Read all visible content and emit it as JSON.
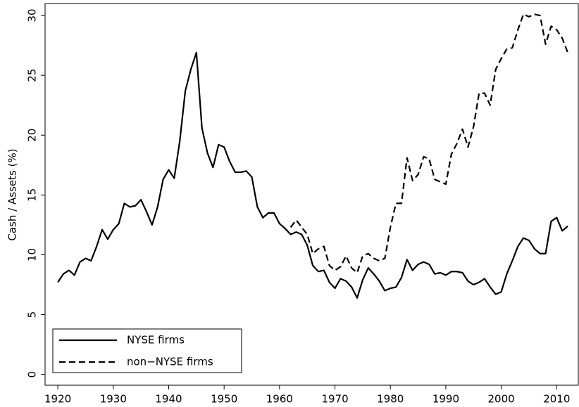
{
  "chart_data": {
    "type": "line",
    "y_label": "Cash / Assets (%)",
    "x": [
      1920,
      1921,
      1922,
      1923,
      1924,
      1925,
      1926,
      1927,
      1928,
      1929,
      1930,
      1931,
      1932,
      1933,
      1934,
      1935,
      1936,
      1937,
      1938,
      1939,
      1940,
      1941,
      1942,
      1943,
      1944,
      1945,
      1946,
      1947,
      1948,
      1949,
      1950,
      1951,
      1952,
      1953,
      1954,
      1955,
      1956,
      1957,
      1958,
      1959,
      1960,
      1961,
      1962,
      1963,
      1964,
      1965,
      1966,
      1967,
      1968,
      1969,
      1970,
      1971,
      1972,
      1973,
      1974,
      1975,
      1976,
      1977,
      1978,
      1979,
      1980,
      1981,
      1982,
      1983,
      1984,
      1985,
      1986,
      1987,
      1988,
      1989,
      1990,
      1991,
      1992,
      1993,
      1994,
      1995,
      1996,
      1997,
      1998,
      1999,
      2000,
      2001,
      2002,
      2003,
      2004,
      2005,
      2006,
      2007,
      2008,
      2009,
      2010,
      2011,
      2012
    ],
    "series": [
      {
        "name": "NYSE firms",
        "color": "#000000",
        "dash": "solid",
        "values": [
          7.7,
          8.4,
          8.7,
          8.3,
          9.4,
          9.7,
          9.5,
          10.7,
          12.1,
          11.3,
          12.1,
          12.6,
          14.3,
          14.0,
          14.1,
          14.6,
          13.6,
          12.5,
          14.0,
          16.3,
          17.1,
          16.4,
          19.5,
          23.7,
          25.5,
          26.9,
          20.6,
          18.5,
          17.3,
          19.2,
          19.0,
          17.8,
          16.9,
          16.9,
          17.0,
          16.5,
          14.0,
          13.1,
          13.5,
          13.5,
          12.6,
          12.2,
          11.7,
          11.9,
          11.7,
          10.8,
          9.1,
          8.6,
          8.7,
          7.7,
          7.2,
          8.0,
          7.8,
          7.3,
          6.4,
          7.9,
          8.9,
          8.4,
          7.8,
          7.0,
          7.2,
          7.3,
          8.1,
          9.6,
          8.7,
          9.2,
          9.4,
          9.2,
          8.4,
          8.5,
          8.3,
          8.6,
          8.6,
          8.5,
          7.8,
          7.5,
          7.7,
          8.0,
          7.3,
          6.7,
          6.9,
          8.4,
          9.5,
          10.7,
          11.4,
          11.2,
          10.5,
          10.1,
          10.1,
          12.8,
          13.1,
          12.0,
          12.4
        ]
      },
      {
        "name": "non−NYSE firms",
        "color": "#000000",
        "dash": "dashed",
        "values": [
          null,
          null,
          null,
          null,
          null,
          null,
          null,
          null,
          null,
          null,
          null,
          null,
          null,
          null,
          null,
          null,
          null,
          null,
          null,
          null,
          null,
          null,
          null,
          null,
          null,
          null,
          null,
          null,
          null,
          null,
          null,
          null,
          null,
          null,
          null,
          null,
          null,
          null,
          null,
          null,
          null,
          null,
          12.3,
          12.9,
          12.3,
          11.7,
          10.1,
          10.5,
          10.7,
          9.1,
          8.7,
          9.0,
          9.9,
          8.9,
          8.5,
          9.9,
          10.1,
          9.7,
          9.5,
          9.7,
          12.3,
          14.3,
          14.3,
          18.1,
          16.2,
          16.7,
          18.2,
          18.0,
          16.3,
          16.1,
          15.9,
          18.4,
          19.3,
          20.5,
          19.0,
          20.7,
          23.5,
          23.5,
          22.5,
          25.5,
          26.4,
          27.2,
          27.3,
          28.8,
          30.1,
          29.9,
          30.1,
          30.0,
          27.6,
          29.1,
          28.8,
          28.1,
          26.9
        ]
      }
    ],
    "xlim": [
      1917.7,
      2013.9
    ],
    "xticks": [
      1920,
      1930,
      1940,
      1950,
      1960,
      1970,
      1980,
      1990,
      2000,
      2010
    ],
    "ylim": [
      -0.9,
      31
    ],
    "yticks": [
      0,
      5,
      10,
      15,
      20,
      25,
      30
    ],
    "legend": "lower-left"
  }
}
